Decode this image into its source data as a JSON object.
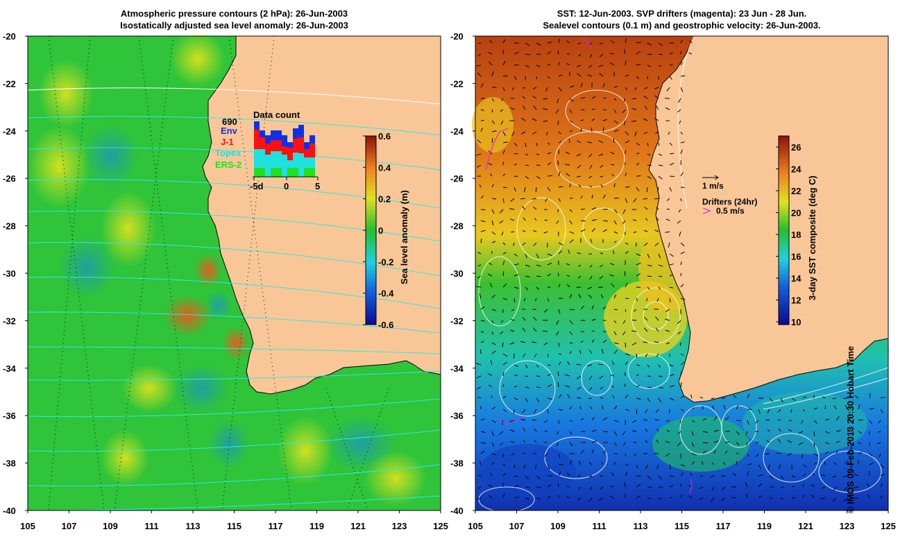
{
  "left_panel": {
    "title_line1": "Atmospheric pressure contours (2 hPa): 26-Jun-2003",
    "title_line2": "Isostatically adjusted sea level anomaly: 26-Jun-2003",
    "colorbar": {
      "label": "Sea level anomaly (m)",
      "ticks": [
        "0.6",
        "0.4",
        "0.2",
        "0",
        "-0.2",
        "-0.4",
        "-0.6"
      ]
    },
    "data_count": {
      "title": "Data count",
      "max_label": "690",
      "satellites": [
        {
          "name": "Env",
          "color": "#1030e8"
        },
        {
          "name": "J-1",
          "color": "#ff1010"
        },
        {
          "name": "Topex",
          "color": "#20e0e0"
        },
        {
          "name": "ERS-2",
          "color": "#20e020"
        }
      ],
      "x_ticks": [
        "-5d",
        "0",
        "5"
      ]
    }
  },
  "right_panel": {
    "title_line1": "SST: 12-Jun-2003. SVP drifters (magenta): 23 Jun - 28 Jun.",
    "title_line2": "Sealevel contours (0.1 m) and geostrophic velocity: 26-Jun-2003.",
    "velocity_scale": "1 m/s",
    "drifters_label": "Drifters (24hr)",
    "drifter_scale": "0.5 m/s",
    "colorbar": {
      "label": "3-day SST composite (deg C)",
      "ticks": [
        "26",
        "24",
        "22",
        "20",
        "18",
        "16",
        "14",
        "12",
        "10"
      ]
    }
  },
  "axes": {
    "lat_ticks": [
      "-20",
      "-22",
      "-24",
      "-26",
      "-28",
      "-30",
      "-32",
      "-34",
      "-36",
      "-38",
      "-40"
    ],
    "lon_ticks": [
      "105",
      "107",
      "109",
      "111",
      "113",
      "115",
      "117",
      "119",
      "121",
      "123",
      "125"
    ]
  },
  "credit": "© IMOS 09-Feb-2013 20:30 Hobart Time",
  "colors": {
    "land": "#f9c797",
    "ocean_sla_base": "#2fc43a",
    "sst_warm": "#c84b10",
    "sst_cold": "#1050c8",
    "pressure_contour": "#30e8e8"
  }
}
